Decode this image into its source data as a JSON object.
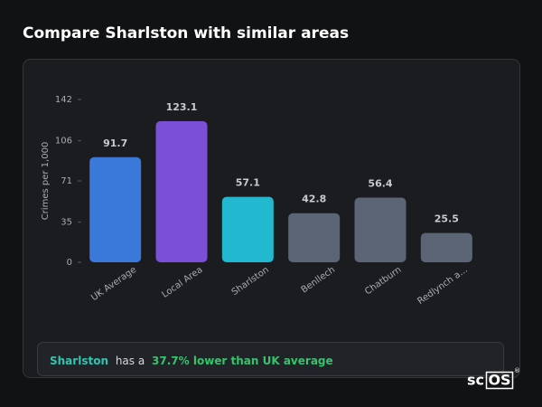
{
  "header": {
    "title": "Compare Sharlston with similar areas"
  },
  "chart_data": {
    "type": "bar",
    "y_label": "Crimes per 1,000",
    "categories": [
      "UK Average",
      "Local Area",
      "Sharlston",
      "Benllech",
      "Chatburn",
      "Redlynch a..."
    ],
    "values": [
      91.7,
      123.1,
      57.1,
      42.8,
      56.4,
      25.5
    ],
    "colors": [
      "#3a78d9",
      "#7b4fd8",
      "#22b8cf",
      "#5c6575",
      "#5c6575",
      "#5c6575"
    ],
    "ylim": [
      0,
      142
    ],
    "yticks": [
      0,
      35,
      71,
      106,
      142
    ],
    "grid": false
  },
  "summary": {
    "area": "Sharlston",
    "middle": "has a",
    "highlight": "37.7% lower than UK average"
  },
  "logo": {
    "prefix": "sc",
    "boxed": "OS",
    "mark": "®"
  }
}
